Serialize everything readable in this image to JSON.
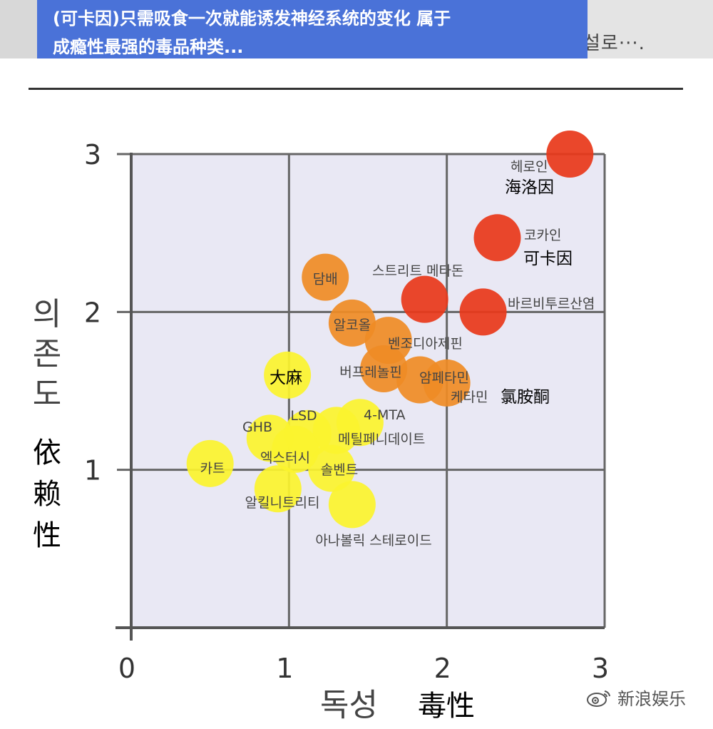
{
  "banner": {
    "line1": "(可卡因)只需吸食一次就能诱发神经系统的变化 属于",
    "line2": "成瘾性最强的毒品种类...",
    "right_fragment": "설로···."
  },
  "watermark": {
    "text": "新浪娱乐",
    "icon": "weibo-eye-icon"
  },
  "chart_data": {
    "type": "scatter",
    "xlabel": "독성",
    "xlabel_cn": "毒性",
    "ylabel": "의존도",
    "ylabel_cn": "依赖性",
    "xlim": [
      0,
      3
    ],
    "ylim": [
      0,
      3
    ],
    "xticks": [
      "0",
      "1",
      "2",
      "3"
    ],
    "yticks": [
      "1",
      "2",
      "3"
    ],
    "grid": true,
    "points": [
      {
        "label": "헤로인",
        "label_cn": "海洛因",
        "x": 2.78,
        "y": 3.0,
        "color": "#e8391b"
      },
      {
        "label": "코카인",
        "label_cn": "可卡因",
        "x": 2.32,
        "y": 2.47,
        "color": "#e8391b"
      },
      {
        "label": "바르비투르산염",
        "label_cn": "",
        "x": 2.23,
        "y": 2.0,
        "color": "#e8391b"
      },
      {
        "label": "스트리트 메타돈",
        "label_cn": "",
        "x": 1.86,
        "y": 2.08,
        "color": "#e8391b"
      },
      {
        "label": "담배",
        "label_cn": "",
        "x": 1.23,
        "y": 2.22,
        "color": "#ef8c26"
      },
      {
        "label": "알코올",
        "label_cn": "",
        "x": 1.4,
        "y": 1.93,
        "color": "#ef8c26"
      },
      {
        "label": "벤조디아제핀",
        "label_cn": "",
        "x": 1.63,
        "y": 1.82,
        "color": "#ef8c26"
      },
      {
        "label": "버프레놀핀",
        "label_cn": "",
        "x": 1.6,
        "y": 1.64,
        "color": "#ef8c26"
      },
      {
        "label": "암페타민",
        "label_cn": "",
        "x": 1.83,
        "y": 1.57,
        "color": "#ef8c26"
      },
      {
        "label": "케타민",
        "label_cn": "氯胺酮",
        "x": 2.0,
        "y": 1.55,
        "color": "#ef8c26"
      },
      {
        "label": "",
        "label_cn": "大麻",
        "x": 0.99,
        "y": 1.6,
        "color": "#fbf32e"
      },
      {
        "label": "LSD",
        "label_cn": "",
        "x": 1.12,
        "y": 1.23,
        "color": "#fbf32e"
      },
      {
        "label": "4-MTA",
        "label_cn": "",
        "x": 1.45,
        "y": 1.3,
        "color": "#fbf32e"
      },
      {
        "label": "메틸페니데이트",
        "label_cn": "",
        "x": 1.3,
        "y": 1.25,
        "color": "#fbf32e"
      },
      {
        "label": "GHB",
        "label_cn": "",
        "x": 0.88,
        "y": 1.2,
        "color": "#fbf32e"
      },
      {
        "label": "엑스터시",
        "label_cn": "",
        "x": 1.04,
        "y": 1.13,
        "color": "#fbf32e"
      },
      {
        "label": "카트",
        "label_cn": "",
        "x": 0.5,
        "y": 1.04,
        "color": "#fbf32e"
      },
      {
        "label": "솔벤트",
        "label_cn": "",
        "x": 1.27,
        "y": 1.01,
        "color": "#fbf32e"
      },
      {
        "label": "알킬니트리티",
        "label_cn": "",
        "x": 0.93,
        "y": 0.88,
        "color": "#fbf32e"
      },
      {
        "label": "아나볼릭 스테로이드",
        "label_cn": "",
        "x": 1.4,
        "y": 0.78,
        "color": "#fbf32e"
      }
    ]
  }
}
